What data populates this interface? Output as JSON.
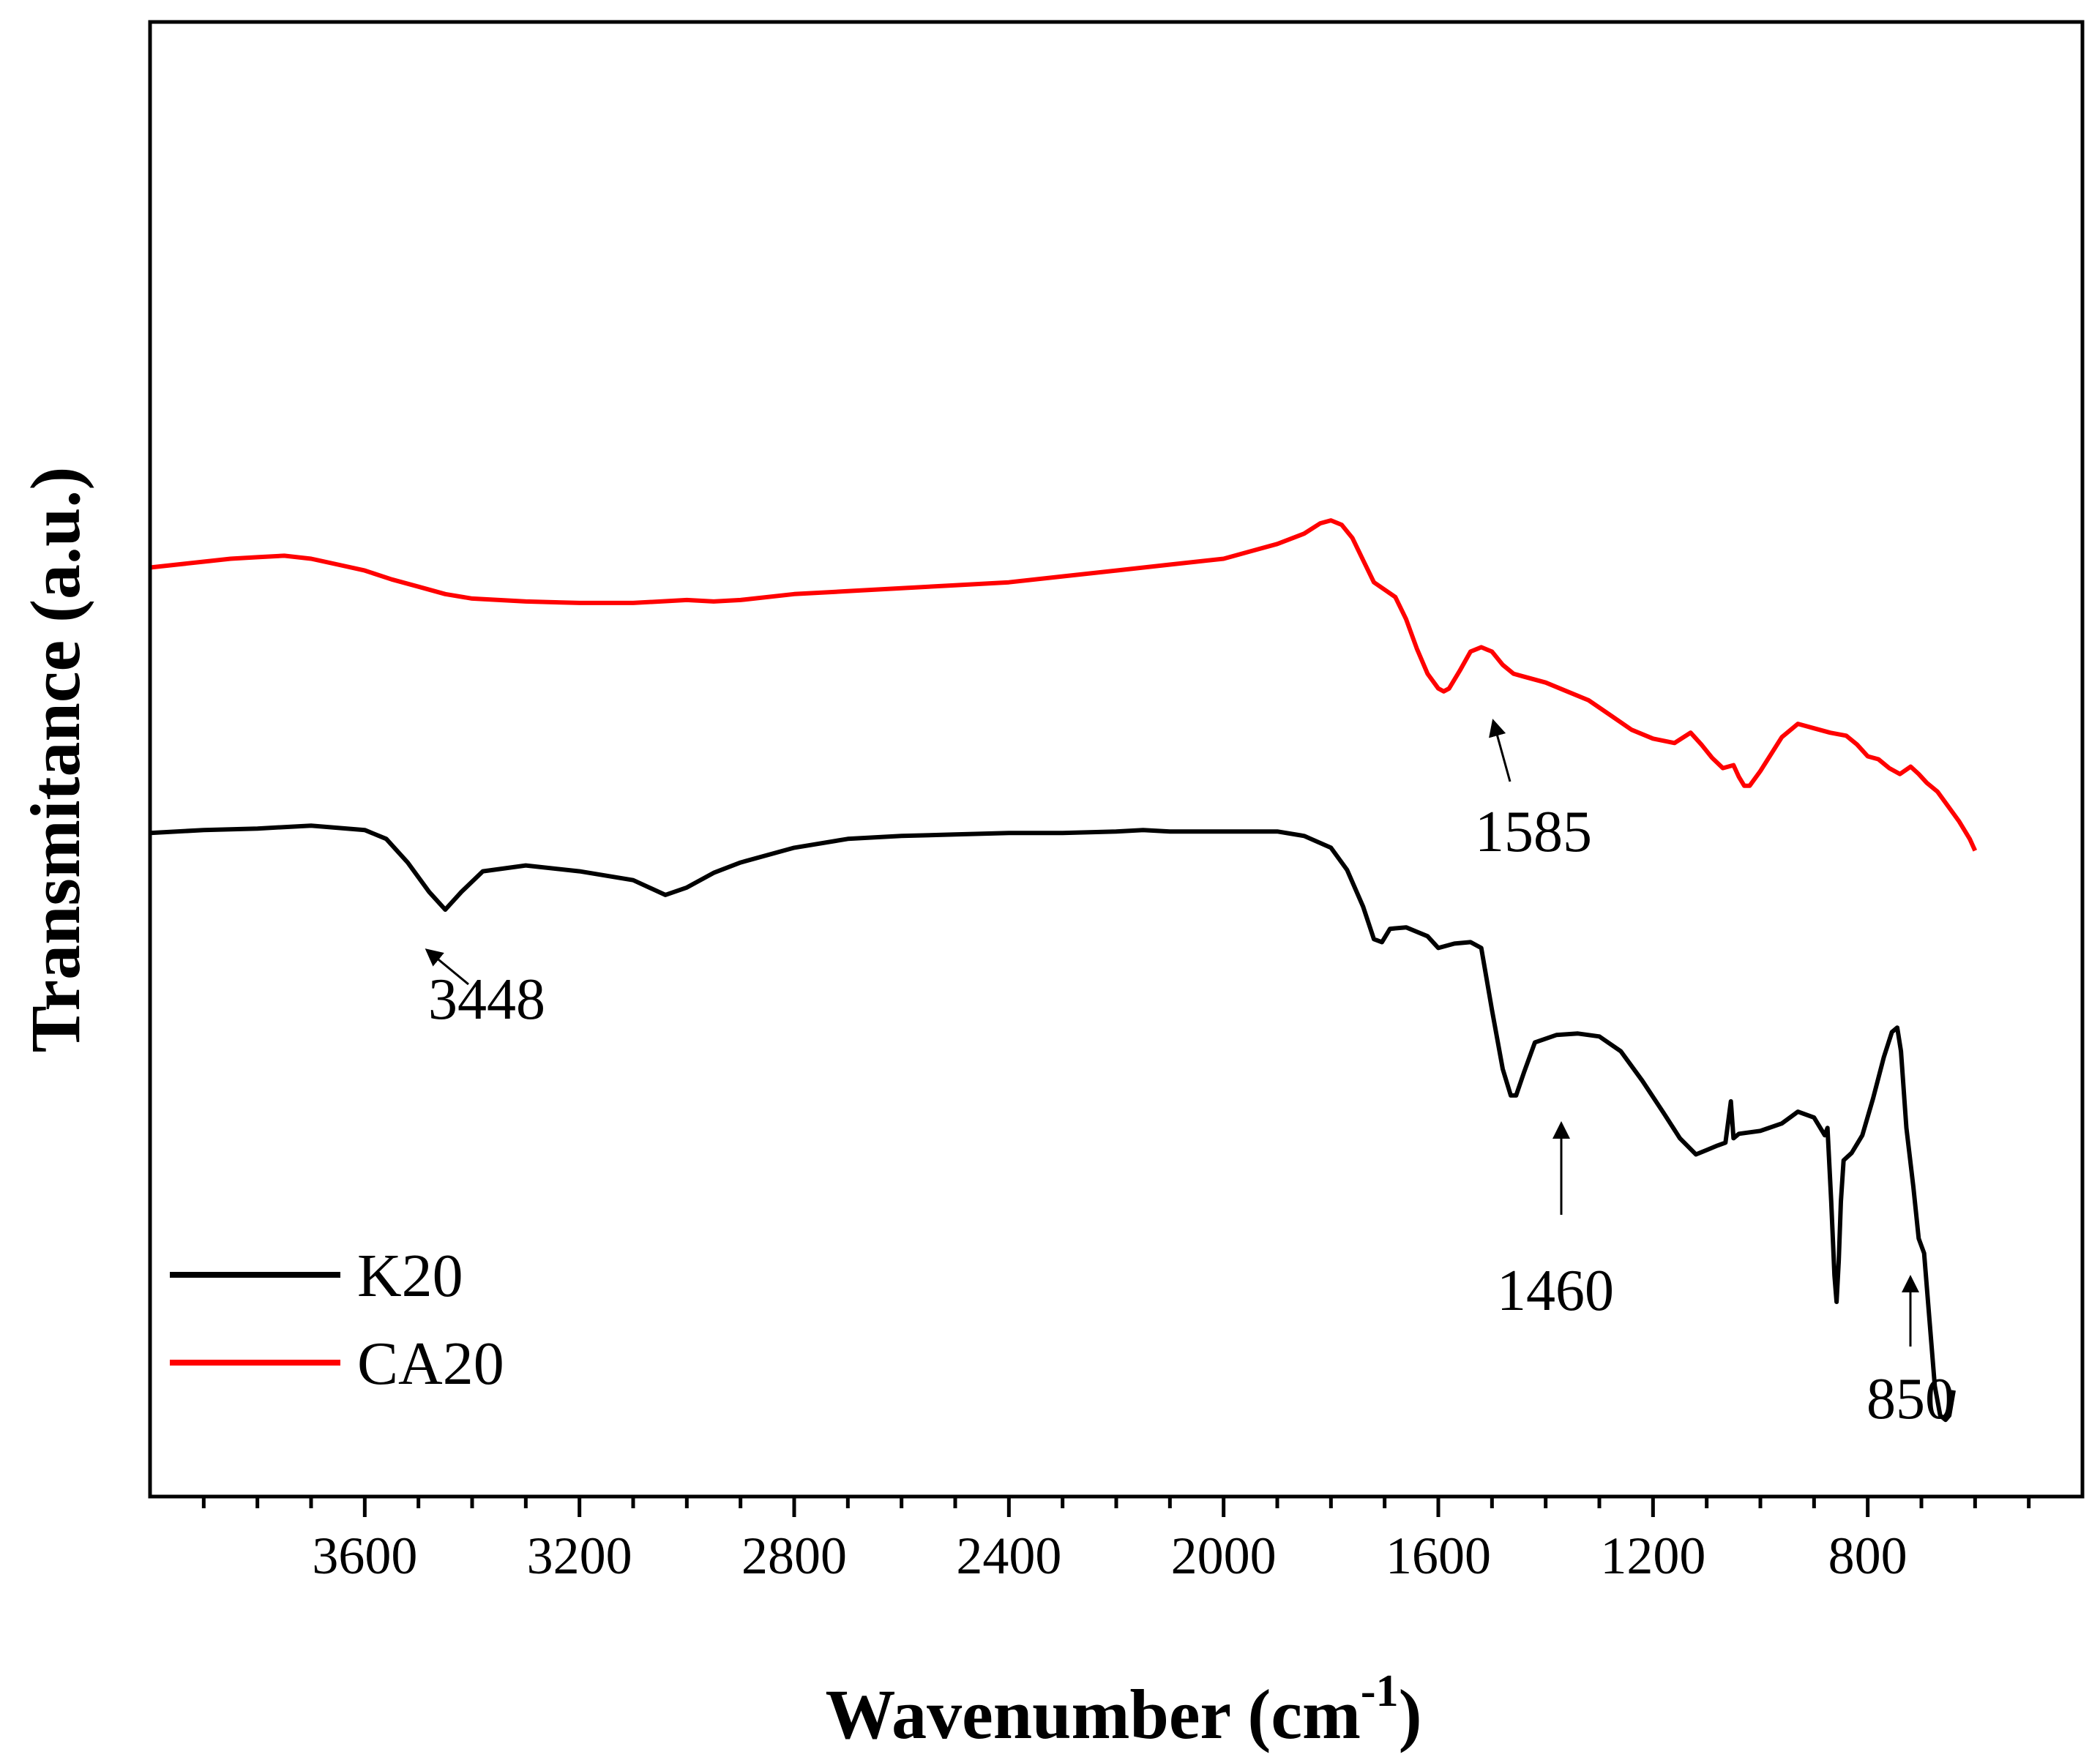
{
  "chart_data": {
    "type": "line",
    "title": "",
    "xlabel": "Wavenumber (cm",
    "xlabel_superscript": "-1",
    "xlabel_close": ")",
    "ylabel": "Transmitance (a.u.)",
    "xlim": [
      4000,
      400
    ],
    "ylim": [
      0,
      100
    ],
    "x_reversed": true,
    "x_ticks": [
      3600,
      3200,
      2800,
      2400,
      2000,
      1600,
      1200,
      800
    ],
    "x_tick_labels": [
      "3600",
      "3200",
      "2800",
      "2400",
      "2000",
      "1600",
      "1200",
      "800"
    ],
    "x_minor_step": 100,
    "y_ticks_shown": false,
    "legend_position": "bottom-left",
    "series": [
      {
        "name": "K20",
        "color": "#000000",
        "points": [
          [
            4000,
            45
          ],
          [
            3900,
            45.2
          ],
          [
            3800,
            45.3
          ],
          [
            3700,
            45.5
          ],
          [
            3600,
            45.2
          ],
          [
            3560,
            44.6
          ],
          [
            3520,
            43
          ],
          [
            3480,
            41
          ],
          [
            3450,
            39.8
          ],
          [
            3420,
            41
          ],
          [
            3380,
            42.4
          ],
          [
            3300,
            42.8
          ],
          [
            3200,
            42.4
          ],
          [
            3100,
            41.8
          ],
          [
            3040,
            40.8
          ],
          [
            3000,
            41.3
          ],
          [
            2950,
            42.3
          ],
          [
            2900,
            43
          ],
          [
            2800,
            44
          ],
          [
            2700,
            44.6
          ],
          [
            2600,
            44.8
          ],
          [
            2500,
            44.9
          ],
          [
            2400,
            45
          ],
          [
            2300,
            45
          ],
          [
            2200,
            45.1
          ],
          [
            2150,
            45.2
          ],
          [
            2100,
            45.1
          ],
          [
            2000,
            45.1
          ],
          [
            1900,
            45.1
          ],
          [
            1850,
            44.8
          ],
          [
            1800,
            44
          ],
          [
            1770,
            42.5
          ],
          [
            1740,
            40
          ],
          [
            1720,
            37.8
          ],
          [
            1705,
            37.6
          ],
          [
            1690,
            38.5
          ],
          [
            1660,
            38.6
          ],
          [
            1620,
            38
          ],
          [
            1600,
            37.2
          ],
          [
            1570,
            37.5
          ],
          [
            1540,
            37.6
          ],
          [
            1520,
            37.2
          ],
          [
            1500,
            33
          ],
          [
            1480,
            29
          ],
          [
            1465,
            27.2
          ],
          [
            1455,
            27.2
          ],
          [
            1440,
            28.8
          ],
          [
            1420,
            30.8
          ],
          [
            1380,
            31.3
          ],
          [
            1340,
            31.4
          ],
          [
            1300,
            31.2
          ],
          [
            1260,
            30.2
          ],
          [
            1220,
            28.2
          ],
          [
            1180,
            26
          ],
          [
            1150,
            24.3
          ],
          [
            1120,
            23.2
          ],
          [
            1100,
            23.5
          ],
          [
            1080,
            23.8
          ],
          [
            1065,
            24
          ],
          [
            1055,
            26.8
          ],
          [
            1050,
            24.3
          ],
          [
            1040,
            24.6
          ],
          [
            1000,
            24.8
          ],
          [
            960,
            25.3
          ],
          [
            930,
            26.1
          ],
          [
            900,
            25.7
          ],
          [
            880,
            24.5
          ],
          [
            875,
            25
          ],
          [
            868,
            20
          ],
          [
            862,
            15
          ],
          [
            858,
            13.2
          ],
          [
            854,
            16
          ],
          [
            850,
            20
          ],
          [
            845,
            22.8
          ],
          [
            830,
            23.3
          ],
          [
            810,
            24.5
          ],
          [
            790,
            27
          ],
          [
            770,
            29.8
          ],
          [
            755,
            31.5
          ],
          [
            745,
            31.8
          ],
          [
            738,
            30.2
          ],
          [
            728,
            25
          ],
          [
            715,
            21
          ],
          [
            705,
            17.5
          ],
          [
            695,
            16.5
          ],
          [
            685,
            12
          ],
          [
            675,
            7.5
          ],
          [
            665,
            5.5
          ],
          [
            655,
            5.2
          ],
          [
            648,
            5.5
          ],
          [
            640,
            7.2
          ]
        ]
      },
      {
        "name": "CA20",
        "color": "#ff0000",
        "points": [
          [
            4000,
            63
          ],
          [
            3950,
            63.2
          ],
          [
            3900,
            63.4
          ],
          [
            3850,
            63.6
          ],
          [
            3800,
            63.7
          ],
          [
            3750,
            63.8
          ],
          [
            3700,
            63.6
          ],
          [
            3650,
            63.2
          ],
          [
            3600,
            62.8
          ],
          [
            3550,
            62.2
          ],
          [
            3500,
            61.7
          ],
          [
            3450,
            61.2
          ],
          [
            3400,
            60.9
          ],
          [
            3300,
            60.7
          ],
          [
            3200,
            60.6
          ],
          [
            3100,
            60.6
          ],
          [
            3000,
            60.8
          ],
          [
            2950,
            60.7
          ],
          [
            2900,
            60.8
          ],
          [
            2800,
            61.2
          ],
          [
            2700,
            61.4
          ],
          [
            2600,
            61.6
          ],
          [
            2500,
            61.8
          ],
          [
            2400,
            62
          ],
          [
            2300,
            62.4
          ],
          [
            2200,
            62.8
          ],
          [
            2100,
            63.2
          ],
          [
            2000,
            63.6
          ],
          [
            1950,
            64.1
          ],
          [
            1900,
            64.6
          ],
          [
            1850,
            65.3
          ],
          [
            1820,
            66
          ],
          [
            1800,
            66.2
          ],
          [
            1780,
            65.9
          ],
          [
            1760,
            65
          ],
          [
            1740,
            63.5
          ],
          [
            1720,
            62
          ],
          [
            1700,
            61.5
          ],
          [
            1680,
            61
          ],
          [
            1660,
            59.5
          ],
          [
            1640,
            57.5
          ],
          [
            1620,
            55.8
          ],
          [
            1600,
            54.8
          ],
          [
            1590,
            54.6
          ],
          [
            1580,
            54.8
          ],
          [
            1560,
            56
          ],
          [
            1540,
            57.3
          ],
          [
            1520,
            57.6
          ],
          [
            1500,
            57.3
          ],
          [
            1480,
            56.4
          ],
          [
            1460,
            55.8
          ],
          [
            1440,
            55.6
          ],
          [
            1400,
            55.2
          ],
          [
            1360,
            54.6
          ],
          [
            1320,
            54
          ],
          [
            1280,
            53
          ],
          [
            1240,
            52
          ],
          [
            1200,
            51.4
          ],
          [
            1160,
            51.1
          ],
          [
            1130,
            51.8
          ],
          [
            1110,
            51
          ],
          [
            1090,
            50.1
          ],
          [
            1070,
            49.4
          ],
          [
            1050,
            49.6
          ],
          [
            1040,
            48.8
          ],
          [
            1030,
            48.2
          ],
          [
            1020,
            48.2
          ],
          [
            1000,
            49.2
          ],
          [
            960,
            51.5
          ],
          [
            930,
            52.4
          ],
          [
            900,
            52.1
          ],
          [
            870,
            51.8
          ],
          [
            840,
            51.6
          ],
          [
            820,
            51
          ],
          [
            800,
            50.2
          ],
          [
            780,
            50
          ],
          [
            760,
            49.4
          ],
          [
            740,
            49
          ],
          [
            720,
            49.5
          ],
          [
            705,
            49
          ],
          [
            690,
            48.4
          ],
          [
            670,
            47.8
          ],
          [
            650,
            46.8
          ],
          [
            630,
            45.8
          ],
          [
            610,
            44.6
          ],
          [
            600,
            43.8
          ]
        ]
      }
    ],
    "annotations": [
      {
        "label": "3448",
        "x": 3448,
        "series": "K20"
      },
      {
        "label": "1585",
        "x": 1585,
        "series": "CA20"
      },
      {
        "label": "1460",
        "x": 1460,
        "series": "K20"
      },
      {
        "label": "850",
        "x": 850,
        "series": "K20"
      }
    ]
  }
}
